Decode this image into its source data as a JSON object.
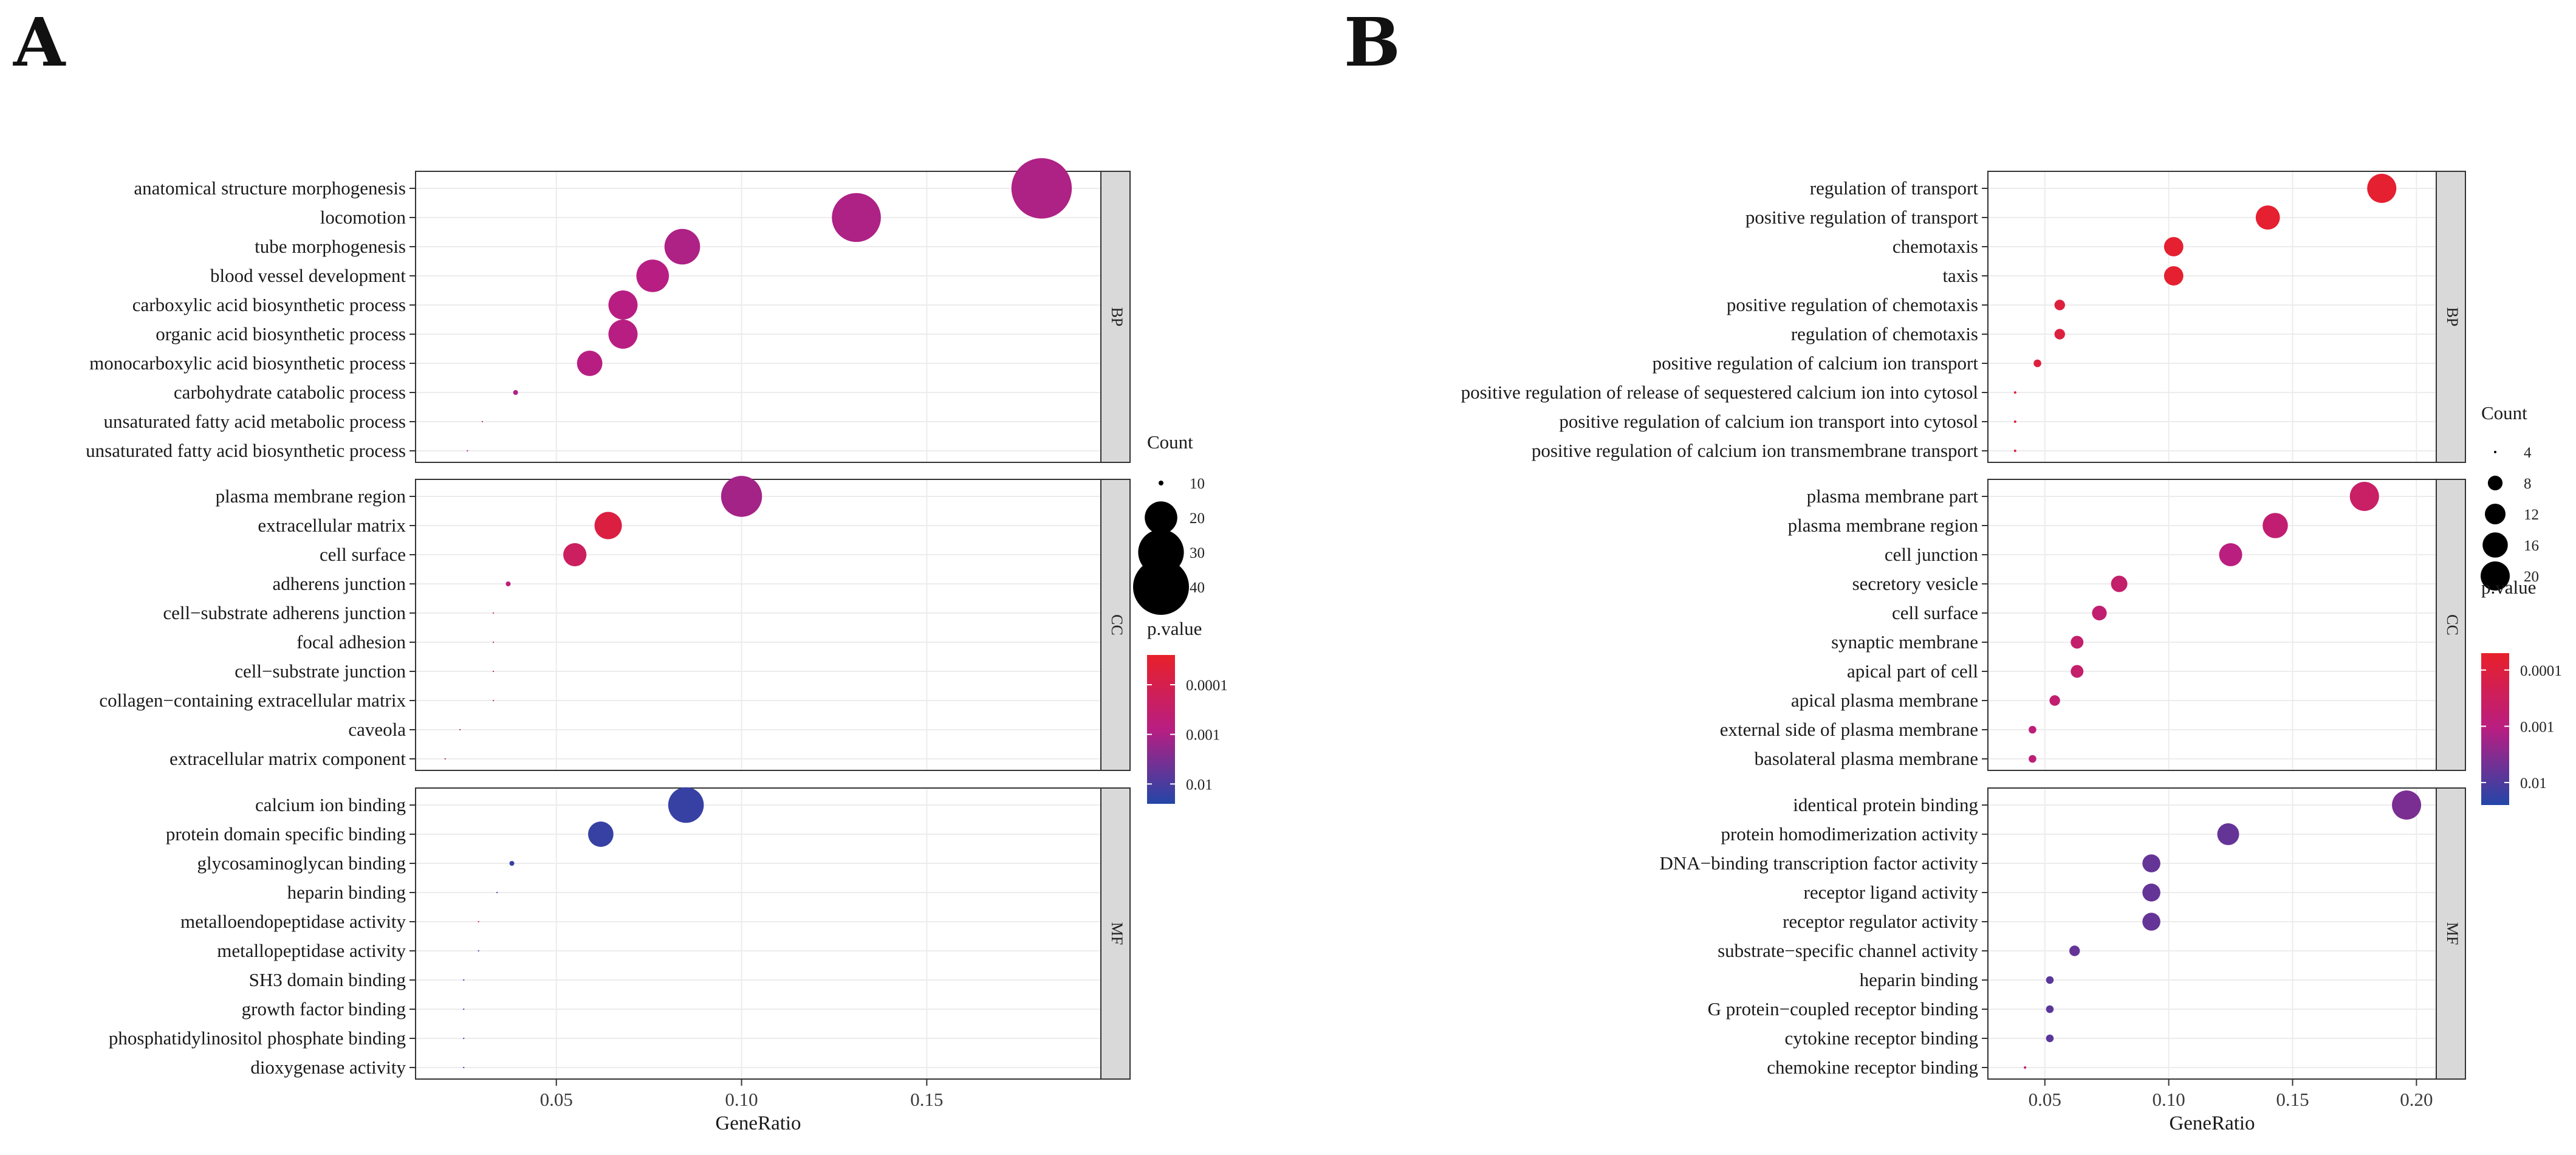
{
  "chart_data": [
    {
      "type": "scatter",
      "panel_label": "A",
      "xlabel": "GeneRatio",
      "xlim": [
        0.012,
        0.197
      ],
      "x_ticks": [
        0.05,
        0.1,
        0.15
      ],
      "x_tick_labels": [
        "0.05",
        "0.10",
        "0.15"
      ],
      "size_legend": {
        "title": "Count",
        "values": [
          10,
          20,
          30,
          40
        ],
        "labels": [
          "10",
          "20",
          "30",
          "40"
        ],
        "range": [
          4,
          46
        ]
      },
      "color_legend": {
        "title": "p.value",
        "tick_labels": [
          "0.0001",
          "0.001",
          "0.01"
        ],
        "tick_log10": [
          -4,
          -3,
          -2
        ],
        "log10_range": [
          -4.6,
          -1.6
        ],
        "low_color": "#e8202a",
        "high_color": "#2346a8"
      },
      "facets": [
        {
          "name": "BP",
          "terms": [
            {
              "term": "anatomical structure morphogenesis",
              "gene_ratio": 0.181,
              "count": 45,
              "p_log10": -3.0
            },
            {
              "term": "locomotion",
              "gene_ratio": 0.131,
              "count": 33,
              "p_log10": -3.0
            },
            {
              "term": "tube morphogenesis",
              "gene_ratio": 0.084,
              "count": 22,
              "p_log10": -3.0
            },
            {
              "term": "blood vessel development",
              "gene_ratio": 0.076,
              "count": 20,
              "p_log10": -3.1
            },
            {
              "term": "carboxylic acid biosynthetic process",
              "gene_ratio": 0.068,
              "count": 18,
              "p_log10": -3.1
            },
            {
              "term": "organic acid biosynthetic process",
              "gene_ratio": 0.068,
              "count": 18,
              "p_log10": -3.1
            },
            {
              "term": "monocarboxylic acid biosynthetic process",
              "gene_ratio": 0.059,
              "count": 16,
              "p_log10": -3.1
            },
            {
              "term": "carbohydrate catabolic process",
              "gene_ratio": 0.039,
              "count": 10,
              "p_log10": -3.0
            },
            {
              "term": "unsaturated fatty acid metabolic process",
              "gene_ratio": 0.03,
              "count": 8,
              "p_log10": -3.0
            },
            {
              "term": "unsaturated fatty acid biosynthetic process",
              "gene_ratio": 0.026,
              "count": 7,
              "p_log10": -3.0
            }
          ]
        },
        {
          "name": "CC",
          "terms": [
            {
              "term": "plasma membrane region",
              "gene_ratio": 0.1,
              "count": 26,
              "p_log10": -2.9
            },
            {
              "term": "extracellular matrix",
              "gene_ratio": 0.064,
              "count": 17,
              "p_log10": -4.2
            },
            {
              "term": "cell surface",
              "gene_ratio": 0.055,
              "count": 15,
              "p_log10": -3.7
            },
            {
              "term": "adherens junction",
              "gene_ratio": 0.037,
              "count": 10,
              "p_log10": -3.2
            },
            {
              "term": "cell−substrate adherens junction",
              "gene_ratio": 0.033,
              "count": 9,
              "p_log10": -3.5
            },
            {
              "term": "focal adhesion",
              "gene_ratio": 0.033,
              "count": 9,
              "p_log10": -3.5
            },
            {
              "term": "cell−substrate junction",
              "gene_ratio": 0.033,
              "count": 9,
              "p_log10": -3.5
            },
            {
              "term": "collagen−containing extracellular matrix",
              "gene_ratio": 0.033,
              "count": 9,
              "p_log10": -3.5
            },
            {
              "term": "caveola",
              "gene_ratio": 0.024,
              "count": 6,
              "p_log10": -3.1
            },
            {
              "term": "extracellular matrix component",
              "gene_ratio": 0.02,
              "count": 5,
              "p_log10": -3.3
            }
          ]
        },
        {
          "name": "MF",
          "terms": [
            {
              "term": "calcium ion binding",
              "gene_ratio": 0.085,
              "count": 22,
              "p_log10": -1.8
            },
            {
              "term": "protein domain specific binding",
              "gene_ratio": 0.062,
              "count": 16,
              "p_log10": -1.8
            },
            {
              "term": "glycosaminoglycan binding",
              "gene_ratio": 0.038,
              "count": 10,
              "p_log10": -1.8
            },
            {
              "term": "heparin binding",
              "gene_ratio": 0.034,
              "count": 9,
              "p_log10": -1.8
            },
            {
              "term": "metalloendopeptidase activity",
              "gene_ratio": 0.029,
              "count": 8,
              "p_log10": -4.3
            },
            {
              "term": "metallopeptidase activity",
              "gene_ratio": 0.029,
              "count": 8,
              "p_log10": -1.8
            },
            {
              "term": "SH3 domain binding",
              "gene_ratio": 0.025,
              "count": 7,
              "p_log10": -1.8
            },
            {
              "term": "growth factor binding",
              "gene_ratio": 0.025,
              "count": 7,
              "p_log10": -1.8
            },
            {
              "term": "phosphatidylinositol phosphate binding",
              "gene_ratio": 0.025,
              "count": 7,
              "p_log10": -1.8
            },
            {
              "term": "dioxygenase activity",
              "gene_ratio": 0.025,
              "count": 7,
              "p_log10": -1.8
            }
          ]
        }
      ]
    },
    {
      "type": "scatter",
      "panel_label": "B",
      "xlabel": "GeneRatio",
      "xlim": [
        0.027,
        0.208
      ],
      "x_ticks": [
        0.05,
        0.1,
        0.15,
        0.2
      ],
      "x_tick_labels": [
        "0.05",
        "0.10",
        "0.15",
        "0.20"
      ],
      "size_legend": {
        "title": "Count",
        "values": [
          4,
          8,
          12,
          16,
          20
        ],
        "labels": [
          "4",
          "8",
          "12",
          "16",
          "20"
        ],
        "range": [
          2,
          24
        ]
      },
      "color_legend": {
        "title": "p.value",
        "tick_labels": [
          "0.0001",
          "0.001",
          "0.01"
        ],
        "tick_log10": [
          -4,
          -3,
          -2
        ],
        "log10_range": [
          -4.3,
          -1.6
        ],
        "low_color": "#e8202a",
        "high_color": "#2346a8"
      },
      "facets": [
        {
          "name": "BP",
          "terms": [
            {
              "term": "regulation of transport",
              "gene_ratio": 0.186,
              "count": 20,
              "p_log10": -4.2
            },
            {
              "term": "positive regulation of transport",
              "gene_ratio": 0.14,
              "count": 15,
              "p_log10": -4.2
            },
            {
              "term": "chemotaxis",
              "gene_ratio": 0.102,
              "count": 11,
              "p_log10": -4.2
            },
            {
              "term": "taxis",
              "gene_ratio": 0.102,
              "count": 11,
              "p_log10": -4.2
            },
            {
              "term": "positive regulation of chemotaxis",
              "gene_ratio": 0.056,
              "count": 6,
              "p_log10": -4.0
            },
            {
              "term": "regulation of chemotaxis",
              "gene_ratio": 0.056,
              "count": 6,
              "p_log10": -4.0
            },
            {
              "term": "positive regulation of calcium ion transport",
              "gene_ratio": 0.047,
              "count": 5,
              "p_log10": -4.0
            },
            {
              "term": "positive regulation of release of sequestered calcium ion into cytosol",
              "gene_ratio": 0.038,
              "count": 4,
              "p_log10": -4.0
            },
            {
              "term": "positive regulation of calcium ion transport into cytosol",
              "gene_ratio": 0.038,
              "count": 4,
              "p_log10": -4.0
            },
            {
              "term": "positive regulation of calcium ion transmembrane transport",
              "gene_ratio": 0.038,
              "count": 4,
              "p_log10": -4.0
            }
          ]
        },
        {
          "name": "CC",
          "terms": [
            {
              "term": "plasma membrane part",
              "gene_ratio": 0.179,
              "count": 20,
              "p_log10": -3.4
            },
            {
              "term": "plasma membrane region",
              "gene_ratio": 0.143,
              "count": 16,
              "p_log10": -3.2
            },
            {
              "term": "cell junction",
              "gene_ratio": 0.125,
              "count": 14,
              "p_log10": -3.0
            },
            {
              "term": "secretory vesicle",
              "gene_ratio": 0.08,
              "count": 9,
              "p_log10": -3.3
            },
            {
              "term": "cell surface",
              "gene_ratio": 0.072,
              "count": 8,
              "p_log10": -3.2
            },
            {
              "term": "synaptic membrane",
              "gene_ratio": 0.063,
              "count": 7,
              "p_log10": -3.3
            },
            {
              "term": "apical part of cell",
              "gene_ratio": 0.063,
              "count": 7,
              "p_log10": -3.3
            },
            {
              "term": "apical plasma membrane",
              "gene_ratio": 0.054,
              "count": 6,
              "p_log10": -3.2
            },
            {
              "term": "external side of plasma membrane",
              "gene_ratio": 0.045,
              "count": 5,
              "p_log10": -3.1
            },
            {
              "term": "basolateral plasma membrane",
              "gene_ratio": 0.045,
              "count": 5,
              "p_log10": -3.1
            }
          ]
        },
        {
          "name": "MF",
          "terms": [
            {
              "term": "identical protein binding",
              "gene_ratio": 0.196,
              "count": 20,
              "p_log10": -2.4
            },
            {
              "term": "protein homodimerization activity",
              "gene_ratio": 0.124,
              "count": 13,
              "p_log10": -2.2
            },
            {
              "term": "DNA−binding transcription factor activity",
              "gene_ratio": 0.093,
              "count": 10,
              "p_log10": -2.2
            },
            {
              "term": "receptor ligand activity",
              "gene_ratio": 0.093,
              "count": 10,
              "p_log10": -2.2
            },
            {
              "term": "receptor regulator activity",
              "gene_ratio": 0.093,
              "count": 10,
              "p_log10": -2.2
            },
            {
              "term": "substrate−specific channel activity",
              "gene_ratio": 0.062,
              "count": 6,
              "p_log10": -2.2
            },
            {
              "term": "heparin binding",
              "gene_ratio": 0.052,
              "count": 5,
              "p_log10": -2.1
            },
            {
              "term": "G protein−coupled receptor binding",
              "gene_ratio": 0.052,
              "count": 5,
              "p_log10": -2.1
            },
            {
              "term": "cytokine receptor binding",
              "gene_ratio": 0.052,
              "count": 5,
              "p_log10": -2.1
            },
            {
              "term": "chemokine receptor binding",
              "gene_ratio": 0.042,
              "count": 4,
              "p_log10": -3.3
            }
          ]
        }
      ]
    }
  ]
}
